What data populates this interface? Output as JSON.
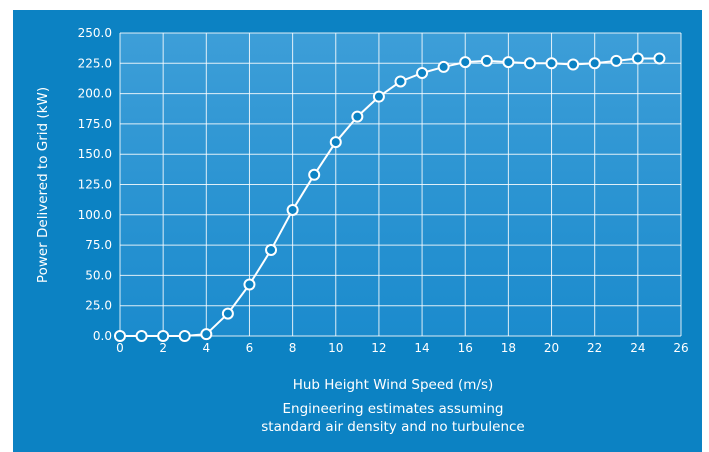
{
  "chart_data": {
    "type": "line",
    "xlabel": "Hub Height Wind Speed (m/s)",
    "ylabel": "Power Delivered to Grid (kW)",
    "note": [
      "Engineering estimates assuming",
      "standard air density and no turbulence"
    ],
    "xlim": [
      0,
      26
    ],
    "ylim": [
      0,
      250
    ],
    "x_ticks": [
      0,
      2,
      4,
      6,
      8,
      10,
      12,
      14,
      16,
      18,
      20,
      22,
      24,
      26
    ],
    "y_ticks": [
      "0.0",
      "25.0",
      "50.0",
      "75.0",
      "100.0",
      "125.0",
      "150.0",
      "175.0",
      "200.0",
      "225.0",
      "250.0"
    ],
    "grid": true,
    "series": [
      {
        "x": [
          0,
          1,
          2,
          3,
          4,
          5,
          6,
          7,
          8,
          9,
          10,
          11,
          12,
          13,
          14,
          15,
          16,
          17,
          18,
          19,
          20,
          21,
          22,
          23,
          24,
          25
        ],
        "values": [
          0,
          0,
          0,
          0,
          1.5,
          18.5,
          42.5,
          71,
          104,
          133,
          160,
          181,
          197.5,
          210,
          217,
          222,
          226,
          227,
          226,
          225,
          225,
          224,
          225,
          227,
          229,
          229
        ]
      }
    ],
    "colors": {
      "background": "#0c82c3",
      "plot_top": "#3d9ed8",
      "plot_bottom": "#1b8bcd",
      "grid": "#ffffff",
      "line": "#ffffff",
      "marker_fill": "#0c82c3"
    }
  }
}
